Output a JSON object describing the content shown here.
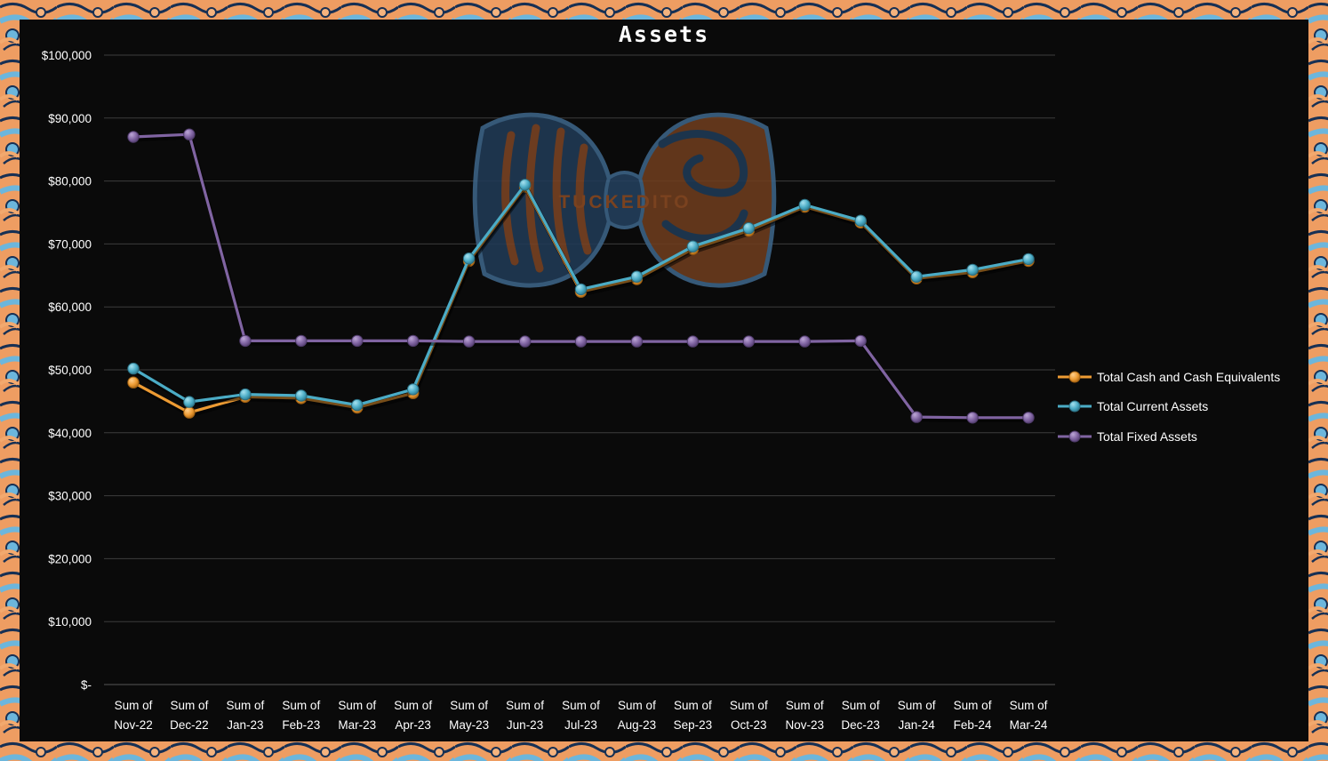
{
  "watermark": {
    "text": "TUCKEDITO"
  },
  "chart_data": {
    "type": "line",
    "title": "Assets",
    "x_tick_prefix": "Sum of",
    "categories": [
      "Nov-22",
      "Dec-22",
      "Jan-23",
      "Feb-23",
      "Mar-23",
      "Apr-23",
      "May-23",
      "Jun-23",
      "Jul-23",
      "Aug-23",
      "Sep-23",
      "Oct-23",
      "Nov-23",
      "Dec-23",
      "Jan-24",
      "Feb-24",
      "Mar-24"
    ],
    "series": [
      {
        "name": "Total Cash and Cash Equivalents",
        "color": "#ED9B33",
        "color_light": "#FFCE8A",
        "color_dark": "#A05F10",
        "values": [
          48000,
          43200,
          45700,
          45500,
          44000,
          46300,
          67300,
          79100,
          62400,
          64400,
          69200,
          72100,
          75900,
          73400,
          64500,
          65500,
          67300
        ]
      },
      {
        "name": "Total Current Assets",
        "color": "#4BACC6",
        "color_light": "#A5E1EF",
        "color_dark": "#2A6E81",
        "values": [
          50200,
          44900,
          46100,
          45900,
          44400,
          46900,
          67700,
          79400,
          62800,
          64800,
          69600,
          72500,
          76200,
          73700,
          64800,
          65900,
          67600
        ]
      },
      {
        "name": "Total Fixed Assets",
        "color": "#8064A2",
        "color_light": "#BCA6D6",
        "color_dark": "#4E3A69",
        "values": [
          87000,
          87400,
          54600,
          54600,
          54600,
          54600,
          54500,
          54500,
          54500,
          54500,
          54500,
          54500,
          54500,
          54600,
          42500,
          42400,
          42400
        ]
      }
    ],
    "ylim": [
      0,
      100000
    ],
    "y_tick_step": 10000,
    "y_tick_labels": [
      "$-",
      "$10,000",
      "$20,000",
      "$30,000",
      "$40,000",
      "$50,000",
      "$60,000",
      "$70,000",
      "$80,000",
      "$90,000",
      "$100,000"
    ],
    "grid": "horizontal",
    "legend_position": "right",
    "background": "#0A0A0A",
    "text_color": "#FFFFFF",
    "gridline_color": "#3D3D3D"
  }
}
